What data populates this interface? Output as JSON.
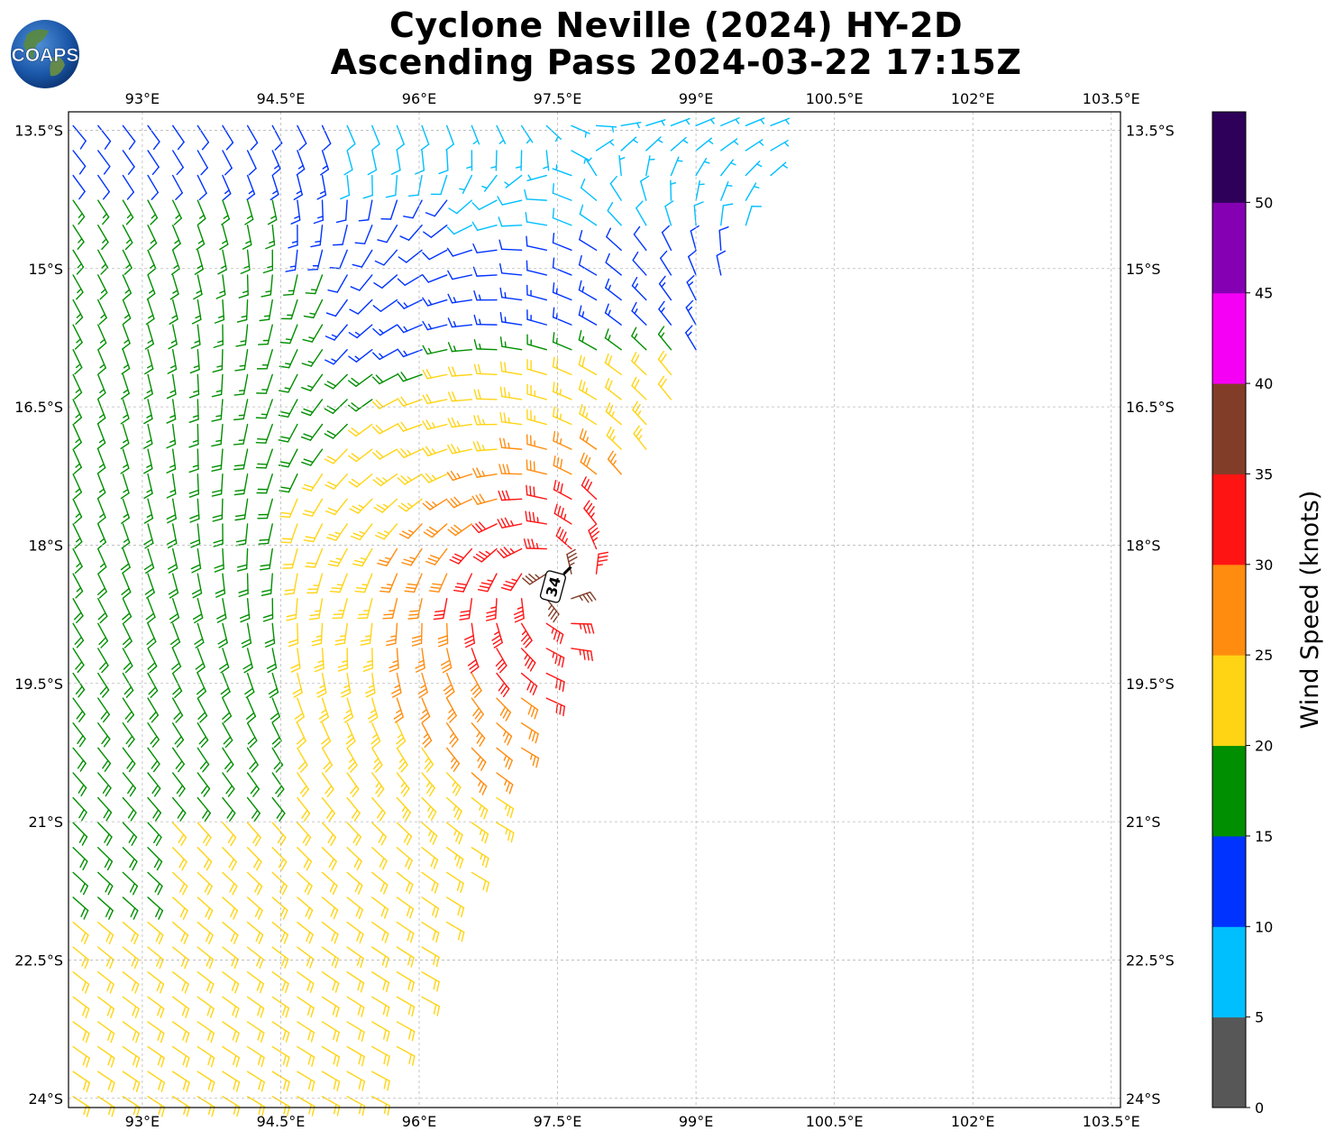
{
  "title_line1": "Cyclone Neville (2024) HY-2D",
  "title_line2": "Ascending Pass 2024-03-22 17:15Z",
  "logo_text": "COAPS",
  "map": {
    "lon_ticks": [
      "93°E",
      "94.5°E",
      "96°E",
      "97.5°E",
      "99°E",
      "100.5°E",
      "102°E",
      "103.5°E"
    ],
    "lat_ticks": [
      "13.5°S",
      "15°S",
      "16.5°S",
      "18°S",
      "19.5°S",
      "21°S",
      "22.5°S",
      "24°S"
    ],
    "lon_values": [
      93,
      94.5,
      96,
      97.5,
      99,
      100.5,
      102,
      103.5
    ],
    "lat_values": [
      -13.5,
      -15,
      -16.5,
      -18,
      -19.5,
      -21,
      -22.5,
      -24
    ],
    "lon_range": [
      92.2,
      103.6
    ],
    "lat_range": [
      -24.1,
      -13.3
    ],
    "grid": true,
    "max_wind_label": "34",
    "max_wind_label_color": "#000000"
  },
  "colorbar": {
    "label": "Wind Speed (knots)",
    "ticks": [
      "0",
      "5",
      "10",
      "15",
      "20",
      "25",
      "30",
      "35",
      "40",
      "45",
      "50"
    ],
    "bins": [
      {
        "from": 0,
        "to": 5,
        "color": "#575757"
      },
      {
        "from": 5,
        "to": 10,
        "color": "#00bfff"
      },
      {
        "from": 10,
        "to": 15,
        "color": "#0033ff"
      },
      {
        "from": 15,
        "to": 20,
        "color": "#008f00"
      },
      {
        "from": 20,
        "to": 25,
        "color": "#ffd414"
      },
      {
        "from": 25,
        "to": 30,
        "color": "#ff8c0f"
      },
      {
        "from": 30,
        "to": 35,
        "color": "#ff1414"
      },
      {
        "from": 35,
        "to": 40,
        "color": "#823d29"
      },
      {
        "from": 40,
        "to": 45,
        "color": "#f500f5"
      },
      {
        "from": 45,
        "to": 50,
        "color": "#8500b3"
      },
      {
        "from": 50,
        "to": 55,
        "color": "#2e0059"
      }
    ]
  },
  "chart_data": {
    "type": "wind-barb swath map",
    "title": "Cyclone Neville (2024) HY-2D Ascending Pass 2024-03-22 17:15Z",
    "xlim": [
      92.2,
      103.6
    ],
    "ylim": [
      -24.1,
      -13.3
    ],
    "center": {
      "lon": 97.5,
      "lat": -18.4
    },
    "max_wind_kt": 34,
    "units": "knots"
  }
}
